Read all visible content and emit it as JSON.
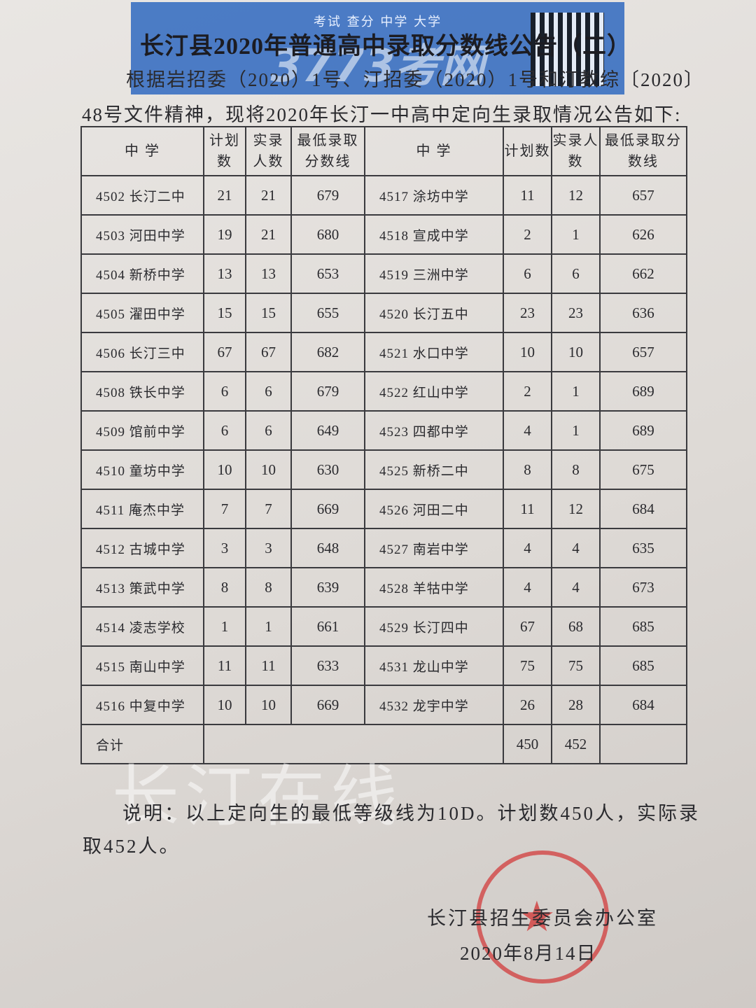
{
  "watermark": {
    "banner": "考试 查分 中学 大学",
    "logo": "3773考网",
    "overlay": "长汀在线"
  },
  "header": {
    "title": "长汀县2020年普通高中录取分数线公告（二）",
    "intro_lines": [
      "根据岩招委（2020）1号、汀招委（2020）1号和汀教综〔2020〕",
      "48号文件精神，现将2020年长汀一中高中定向生录取情况公告如下:"
    ]
  },
  "table": {
    "headers": [
      "中 学",
      "计划数",
      "实录人数",
      "最低录取分数线",
      "中 学",
      "计划数",
      "实录人数",
      "最低录取分数线"
    ],
    "rows": [
      [
        "4502 长汀二中",
        21,
        21,
        679,
        "4517 涂坊中学",
        11,
        12,
        657
      ],
      [
        "4503 河田中学",
        19,
        21,
        680,
        "4518 宣成中学",
        2,
        1,
        626
      ],
      [
        "4504 新桥中学",
        13,
        13,
        653,
        "4519 三洲中学",
        6,
        6,
        662
      ],
      [
        "4505 濯田中学",
        15,
        15,
        655,
        "4520 长汀五中",
        23,
        23,
        636
      ],
      [
        "4506 长汀三中",
        67,
        67,
        682,
        "4521 水口中学",
        10,
        10,
        657
      ],
      [
        "4508 铁长中学",
        6,
        6,
        679,
        "4522 红山中学",
        2,
        1,
        689
      ],
      [
        "4509 馆前中学",
        6,
        6,
        649,
        "4523 四都中学",
        4,
        1,
        689
      ],
      [
        "4510 童坊中学",
        10,
        10,
        630,
        "4525 新桥二中",
        8,
        8,
        675
      ],
      [
        "4511 庵杰中学",
        7,
        7,
        669,
        "4526 河田二中",
        11,
        12,
        684
      ],
      [
        "4512 古城中学",
        3,
        3,
        648,
        "4527 南岩中学",
        4,
        4,
        635
      ],
      [
        "4513 策武中学",
        8,
        8,
        639,
        "4528 羊牯中学",
        4,
        4,
        673
      ],
      [
        "4514 凌志学校",
        1,
        1,
        661,
        "4529 长汀四中",
        67,
        68,
        685
      ],
      [
        "4515 南山中学",
        11,
        11,
        633,
        "4531 龙山中学",
        75,
        75,
        685
      ],
      [
        "4516 中复中学",
        10,
        10,
        669,
        "4532 龙宇中学",
        26,
        28,
        684
      ]
    ],
    "total": {
      "label": "合计",
      "plan": 450,
      "actual": 452
    }
  },
  "note_lines": [
    "说明：以上定向生的最低等级线为10D。计划数450人，实际录",
    "取452人。"
  ],
  "signature": {
    "office": "长汀县招生委员会办公室",
    "date": "2020年8月14日"
  }
}
